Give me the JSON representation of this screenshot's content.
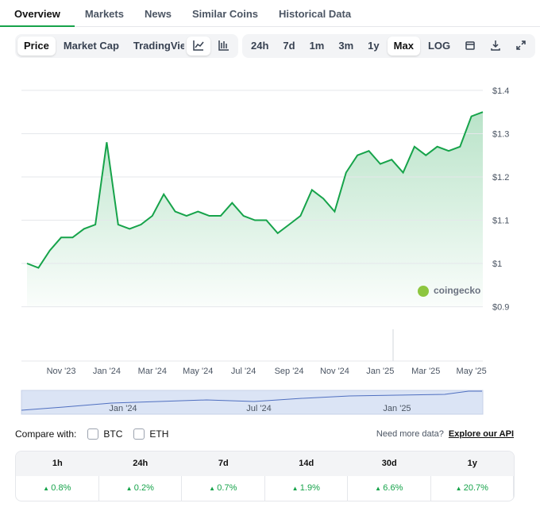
{
  "tabs": [
    "Overview",
    "Markets",
    "News",
    "Similar Coins",
    "Historical Data"
  ],
  "chart_types": [
    "Price",
    "Market Cap",
    "TradingView"
  ],
  "ranges": [
    "24h",
    "7d",
    "1m",
    "3m",
    "1y",
    "Max",
    "LOG"
  ],
  "chart_data": {
    "type": "line",
    "categories": [
      null,
      null,
      null,
      "Nov '23",
      null,
      null,
      null,
      "Jan '24",
      null,
      null,
      null,
      "Mar '24",
      null,
      null,
      null,
      "May '24",
      null,
      null,
      null,
      "Jul '24",
      null,
      null,
      null,
      "Sep '24",
      null,
      null,
      null,
      "Nov '24",
      null,
      null,
      null,
      "Jan '25",
      null,
      null,
      null,
      "Mar '25",
      null,
      null,
      null,
      "May '25",
      null
    ],
    "values": [
      1.0,
      0.99,
      1.03,
      1.06,
      1.06,
      1.08,
      1.09,
      1.28,
      1.09,
      1.08,
      1.09,
      1.11,
      1.16,
      1.12,
      1.11,
      1.12,
      1.11,
      1.11,
      1.14,
      1.11,
      1.1,
      1.1,
      1.07,
      1.09,
      1.11,
      1.17,
      1.15,
      1.12,
      1.21,
      1.25,
      1.26,
      1.23,
      1.24,
      1.21,
      1.27,
      1.25,
      1.27,
      1.26,
      1.27,
      1.34,
      1.35
    ],
    "color": "#16a34a",
    "ylim": [
      0.78,
      1.42
    ],
    "yticks": [
      {
        "value": 0.9,
        "label": "$0.9"
      },
      {
        "value": 1,
        "label": "$1"
      },
      {
        "value": 1.1,
        "label": "$1.1"
      },
      {
        "value": 1.2,
        "label": "$1.2"
      },
      {
        "value": 1.3,
        "label": "$1.3"
      },
      {
        "value": 1.4,
        "label": "$1.4"
      }
    ],
    "grid": true,
    "watermark": "coingecko",
    "navigator_labels": [
      "Jan '24",
      "Jul '24",
      "Jan '25"
    ]
  },
  "compare": {
    "label": "Compare with:",
    "options": [
      "BTC",
      "ETH"
    ],
    "note": "Need more data?",
    "link": "Explore our API"
  },
  "performance": {
    "headers": [
      "1h",
      "24h",
      "7d",
      "14d",
      "30d",
      "1y"
    ],
    "values": [
      "0.8%",
      "0.2%",
      "0.7%",
      "1.9%",
      "6.6%",
      "20.7%"
    ]
  }
}
